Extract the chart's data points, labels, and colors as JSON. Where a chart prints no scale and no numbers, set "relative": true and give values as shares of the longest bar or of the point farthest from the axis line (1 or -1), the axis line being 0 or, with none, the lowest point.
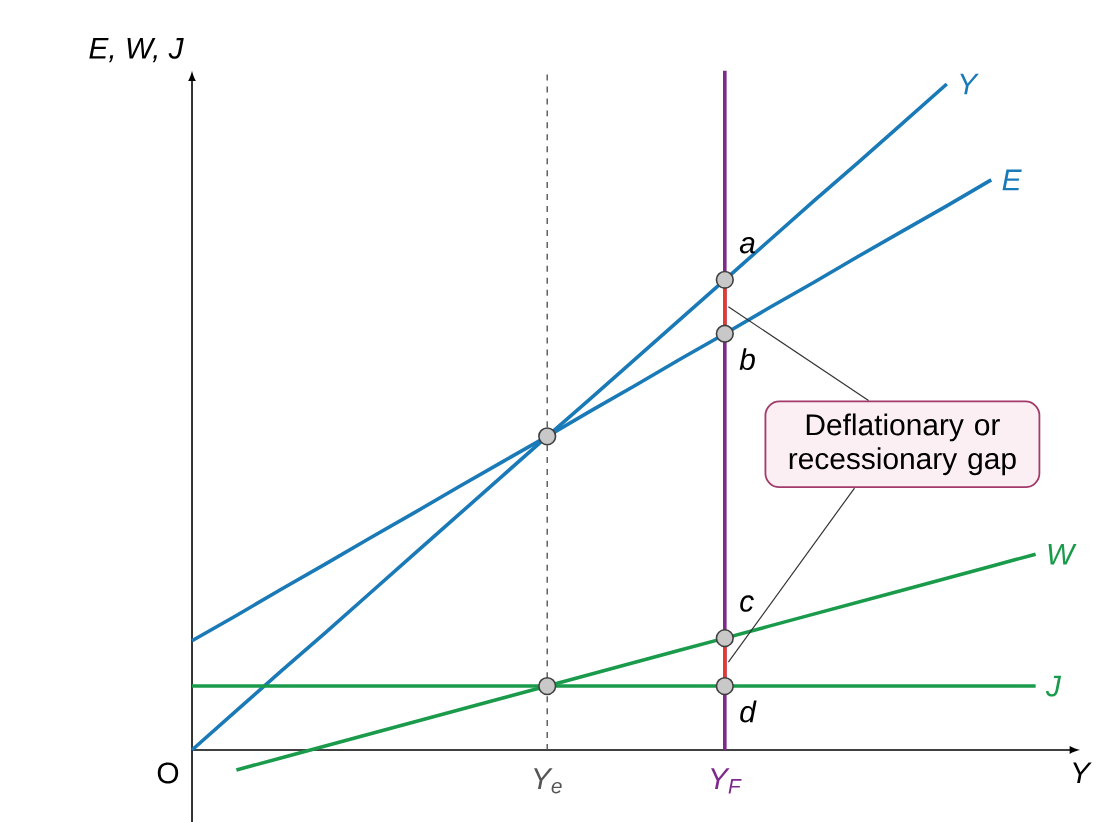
{
  "chart_data": {
    "type": "line",
    "relative": true,
    "xlabel": "Y",
    "ylabel": "E, W, J",
    "categories": [
      null,
      null,
      null,
      null,
      null,
      null,
      null,
      null,
      "Y$_{e}$",
      null,
      null,
      null,
      "Y$_{F}$",
      null,
      null,
      null,
      null,
      null,
      null,
      null
    ],
    "ref_lines": [
      {
        "axis": "x",
        "value": "Y$_{e}$",
        "color": "#555555",
        "line_style": "dashed"
      },
      {
        "axis": "x",
        "value": "Y$_{F}$",
        "color": "#7d2a8c"
      }
    ],
    "annotations": [
      "O",
      "Deflationary or recessionary gap",
      {
        "text": "a",
        "x": "Y$_{F}$",
        "y": 0.706
      },
      {
        "text": "b",
        "x": "Y$_{F}$",
        "y": 0.625
      },
      {
        "text": "c",
        "x": "Y$_{F}$",
        "y": 0.168
      },
      {
        "text": "d",
        "x": "Y$_{F}$",
        "y": 0.096
      }
    ],
    "series": [
      {
        "name": "Y",
        "color": "#1a7ab8",
        "values": [
          0,
          0.059,
          0.118,
          0.176,
          0.235,
          0.294,
          0.353,
          0.412,
          0.471,
          0.529,
          0.588,
          0.647,
          0.706,
          0.765,
          0.824,
          0.882,
          0.941,
          1.0,
          null,
          null
        ]
      },
      {
        "name": "E",
        "color": "#1a7ab8",
        "values": [
          0.164,
          0.202,
          0.241,
          0.279,
          0.318,
          0.356,
          0.395,
          0.433,
          0.471,
          0.51,
          0.548,
          0.587,
          0.625,
          0.664,
          0.702,
          0.741,
          0.779,
          0.817,
          0.856,
          null
        ]
      },
      {
        "name": "W",
        "color": "#1a9b4b",
        "values": [
          null,
          -0.03,
          -0.012,
          0.006,
          0.024,
          0.042,
          0.06,
          0.078,
          0.096,
          0.114,
          0.132,
          0.15,
          0.168,
          0.186,
          0.204,
          0.222,
          0.24,
          0.258,
          0.276,
          0.294
        ]
      },
      {
        "name": "J",
        "color": "#1a9b4b",
        "values": [
          0.096,
          0.096,
          0.096,
          0.096,
          0.096,
          0.096,
          0.096,
          0.096,
          0.096,
          0.096,
          0.096,
          0.096,
          0.096,
          0.096,
          0.096,
          0.096,
          0.096,
          0.096,
          0.096,
          0.096
        ]
      },
      {
        "type": "scatter",
        "marker": "circle",
        "color": "#c8c8c8",
        "values": [
          null,
          null,
          null,
          null,
          null,
          null,
          null,
          null,
          0.471,
          null,
          null,
          null,
          0.706,
          null,
          null,
          null,
          null,
          null,
          null,
          null
        ]
      },
      {
        "type": "scatter",
        "marker": "circle",
        "color": "#c8c8c8",
        "values": [
          null,
          null,
          null,
          null,
          null,
          null,
          null,
          null,
          0.096,
          null,
          null,
          null,
          0.625,
          null,
          null,
          null,
          null,
          null,
          null,
          null
        ]
      },
      {
        "type": "scatter",
        "marker": "circle",
        "color": "#c8c8c8",
        "values": [
          null,
          null,
          null,
          null,
          null,
          null,
          null,
          null,
          null,
          null,
          null,
          null,
          0.168,
          null,
          null,
          null,
          null,
          null,
          null,
          null
        ]
      },
      {
        "type": "scatter",
        "marker": "circle",
        "color": "#c8c8c8",
        "values": [
          null,
          null,
          null,
          null,
          null,
          null,
          null,
          null,
          null,
          null,
          null,
          null,
          0.096,
          null,
          null,
          null,
          null,
          null,
          null,
          null
        ]
      }
    ]
  }
}
